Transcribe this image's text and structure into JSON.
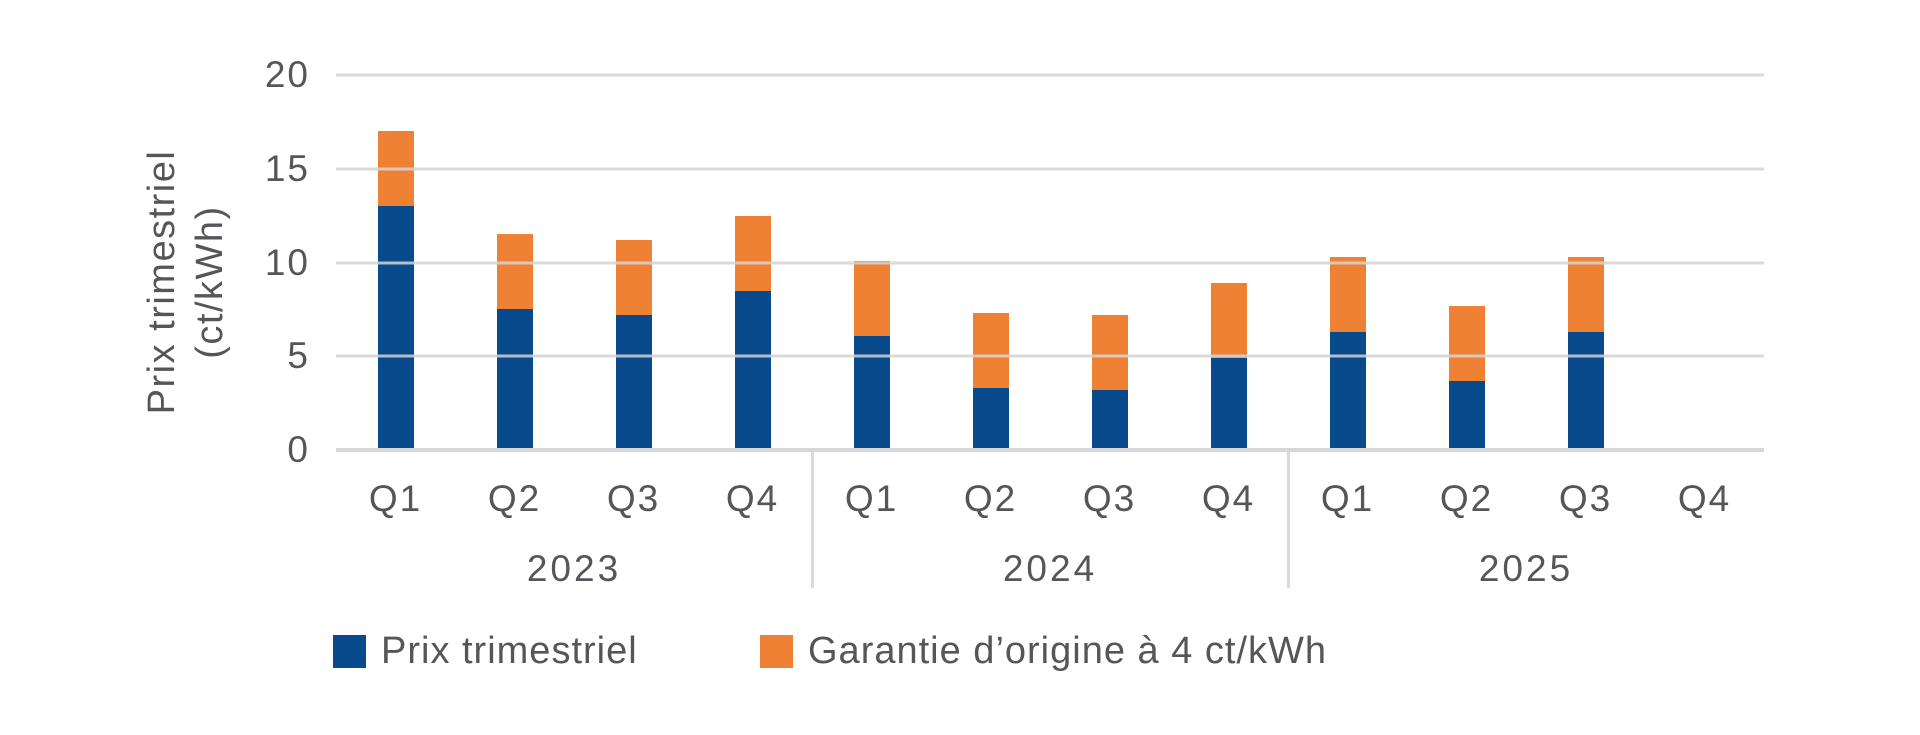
{
  "figure": {
    "background": "#ffffff"
  },
  "chart_data": {
    "type": "bar",
    "stacked": true,
    "title": "",
    "ylabel": "Prix trimestriel (ct/kWh)",
    "ylabel_lines": [
      "Prix trimestriel",
      "(ct/kWh)"
    ],
    "ylim": [
      0,
      20
    ],
    "yticks": [
      20,
      15,
      10,
      5,
      0
    ],
    "grid": "horizontal",
    "gridline_color": "#d9d9d9",
    "axis_line_color": "#d7d7d7",
    "text_color": "#55565a",
    "legend_position": "bottom",
    "groups": [
      {
        "year": "2023",
        "quarters": [
          "Q1",
          "Q2",
          "Q3",
          "Q4"
        ]
      },
      {
        "year": "2024",
        "quarters": [
          "Q1",
          "Q2",
          "Q3",
          "Q4"
        ]
      },
      {
        "year": "2025",
        "quarters": [
          "Q1",
          "Q2",
          "Q3",
          "Q4"
        ]
      }
    ],
    "series": [
      {
        "name": "Prix trimestriel",
        "color": "#084a8c",
        "values": [
          13,
          7.5,
          7.2,
          8.5,
          6.1,
          3.3,
          3.2,
          4.9,
          6.3,
          3.7,
          6.3,
          null
        ]
      },
      {
        "name": "Garantie d’origine à 4 ct/kWh",
        "color": "#ee8134",
        "values": [
          4,
          4,
          4,
          4,
          4,
          4,
          4,
          4,
          4,
          4,
          4,
          null
        ]
      }
    ]
  }
}
